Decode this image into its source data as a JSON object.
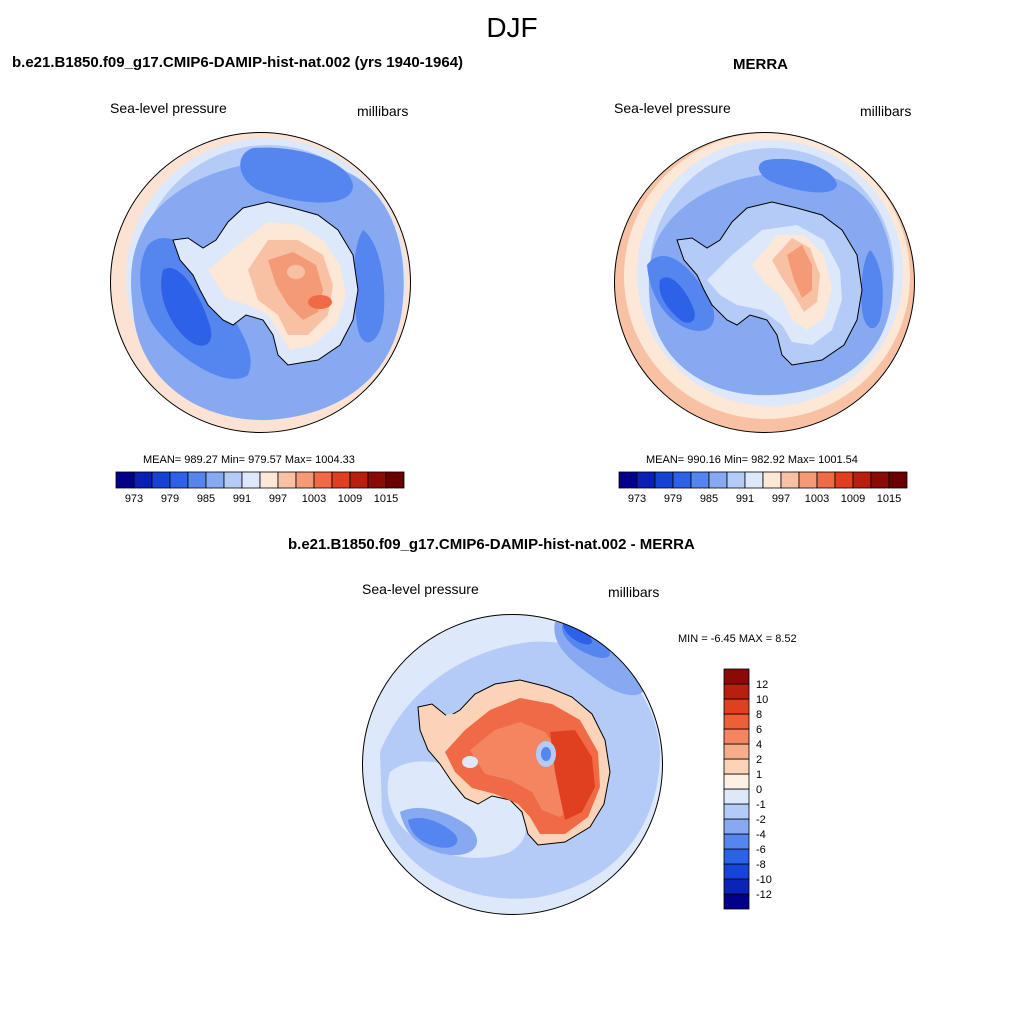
{
  "figure": {
    "season": "DJF"
  },
  "panels": {
    "model": {
      "title": "b.e21.B1850.f09_g17.CMIP6-DAMIP-hist-nat.002 (yrs 1940-1964)",
      "left_label": "Sea-level pressure",
      "right_label": "millibars",
      "stats": "MEAN= 989.27  Min= 979.57  Max= 1004.33"
    },
    "obs": {
      "title": "MERRA",
      "left_label": "Sea-level pressure",
      "right_label": "millibars",
      "stats": "MEAN= 990.16  Min= 982.92  Max= 1001.54"
    },
    "diff": {
      "title": "b.e21.B1850.f09_g17.CMIP6-DAMIP-hist-nat.002 - MERRA",
      "left_label": "Sea-level pressure",
      "right_label": "millibars",
      "minmax": "MIN =  -6.45 MAX =   8.52"
    }
  },
  "colorbars": {
    "absolute": {
      "orientation": "horizontal",
      "levels": [
        973,
        976,
        979,
        982,
        985,
        988,
        991,
        994,
        997,
        1000,
        1003,
        1006,
        1009,
        1012,
        1015
      ],
      "tick_labels": [
        "973",
        "979",
        "985",
        "991",
        "997",
        "1003",
        "1009",
        "1015"
      ],
      "colors": [
        "#00008b",
        "#0a1fb4",
        "#1742d6",
        "#2d62e8",
        "#5585ee",
        "#86a9f2",
        "#b3cbf6",
        "#dde8fa",
        "#fde7d6",
        "#f8c1a3",
        "#f49a76",
        "#ef6a45",
        "#e0401f",
        "#b81f0e",
        "#8a0b05",
        "#6a0000"
      ]
    },
    "difference": {
      "orientation": "vertical",
      "levels": [
        -12,
        -10,
        -8,
        -6,
        -4,
        -2,
        -1,
        0,
        1,
        2,
        4,
        6,
        8,
        10,
        12
      ],
      "tick_labels": [
        "-12",
        "-10",
        "-8",
        "-6",
        "-4",
        "-2",
        "-1",
        "0",
        "1",
        "2",
        "4",
        "6",
        "8",
        "10",
        "12"
      ],
      "colors": [
        "#00008b",
        "#0a24b8",
        "#1444d8",
        "#2a62e8",
        "#5585ee",
        "#86a9f2",
        "#b3cbf6",
        "#dde8fa",
        "#fdf1e6",
        "#fbd3b8",
        "#f7ad8a",
        "#f38660",
        "#ef5f35",
        "#e0401f",
        "#b81f0e",
        "#8a0b05"
      ]
    }
  },
  "map": {
    "projection": "south-polar-stereographic",
    "region": "Antarctica / Southern Ocean",
    "ocean_low_color": "#2f66e6",
    "ice_high_color": "#f08a66",
    "diff_land_color": "#ee6a40"
  }
}
